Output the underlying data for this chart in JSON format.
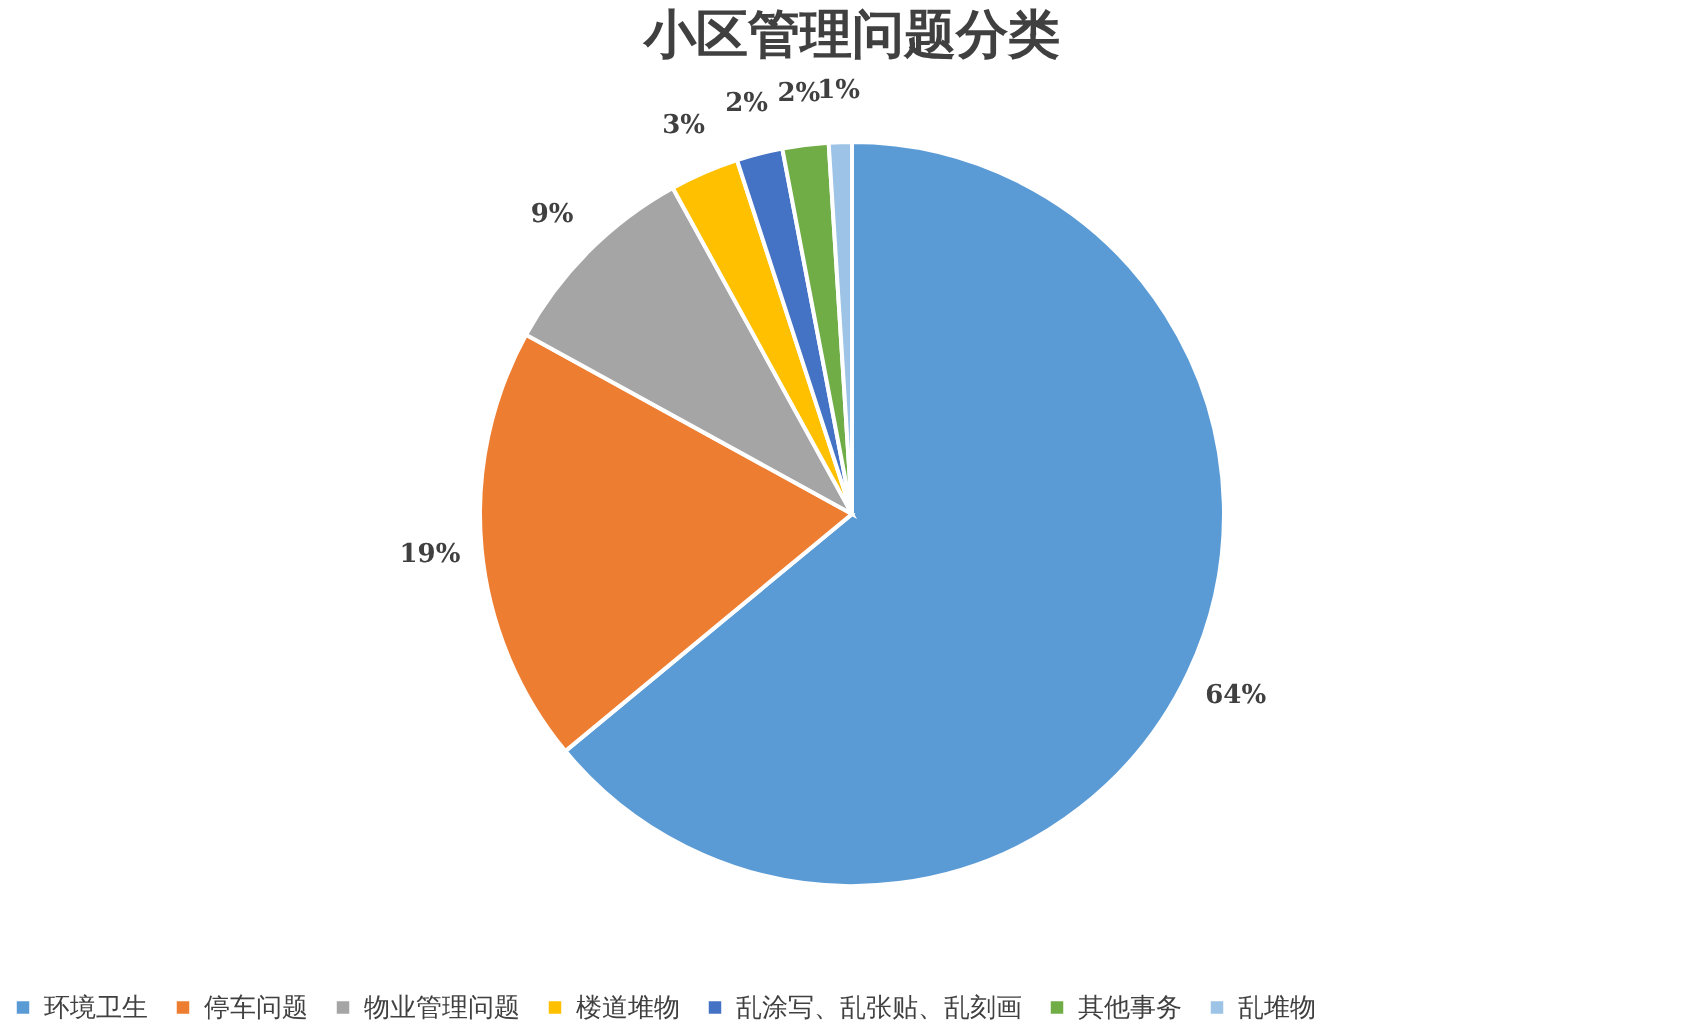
{
  "chart_data": {
    "type": "pie",
    "title": "小区管理问题分类",
    "categories": [
      "环境卫生",
      "停车问题",
      "物业管理问题",
      "楼道堆物",
      "乱涂写、乱张贴、乱刻画",
      "其他事务",
      "乱堆物"
    ],
    "values": [
      64,
      19,
      9,
      3,
      2,
      2,
      1
    ],
    "value_labels": [
      "64%",
      "19%",
      "9%",
      "3%",
      "2%",
      "2%",
      "1%"
    ],
    "colors": [
      "#5b9bd5",
      "#ed7d31",
      "#a5a5a5",
      "#ffc000",
      "#4472c4",
      "#70ad47",
      "#9dc3e6"
    ],
    "legend": "bottom"
  }
}
